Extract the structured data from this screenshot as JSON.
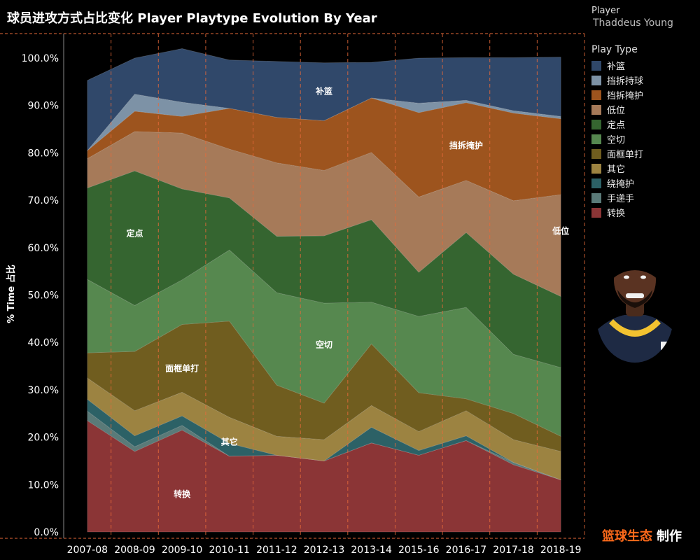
{
  "title": "球员进攻方式占比变化 Player Playtype Evolution By Year",
  "legend": {
    "player_label": "Player",
    "player_name": "Thaddeus Young",
    "playtype_label": "Play Type"
  },
  "credit": {
    "brand": "篮球生态",
    "suffix": "制作"
  },
  "chart_data": {
    "type": "area",
    "stacked": true,
    "ylabel": "% Time 占比",
    "ylim": [
      0,
      100
    ],
    "yticks": [
      "0.0%",
      "10.0%",
      "20.0%",
      "30.0%",
      "40.0%",
      "50.0%",
      "60.0%",
      "70.0%",
      "80.0%",
      "90.0%",
      "100.0%"
    ],
    "categories": [
      "2007-08",
      "2008-09",
      "2009-10",
      "2010-11",
      "2011-12",
      "2012-13",
      "2013-14",
      "2015-16",
      "2016-17",
      "2017-18",
      "2018-19"
    ],
    "grid": "vertical dashed",
    "series": [
      {
        "name": "转换",
        "color": "#8b3536",
        "values": [
          23.5,
          17.0,
          21.5,
          16.0,
          16.2,
          15.0,
          18.8,
          16.2,
          19.3,
          14.2,
          11.0
        ]
      },
      {
        "name": "手递手",
        "color": "#5a7a78",
        "values": [
          2.0,
          1.0,
          1.0,
          0.0,
          0.0,
          0.0,
          0.0,
          0.0,
          0.0,
          0.5,
          0.0
        ]
      },
      {
        "name": "绕掩护",
        "color": "#2c6166",
        "values": [
          2.5,
          2.3,
          2.0,
          2.7,
          0.0,
          0.0,
          3.3,
          1.0,
          1.0,
          0.0,
          0.0
        ]
      },
      {
        "name": "其它",
        "color": "#9c8341",
        "values": [
          4.5,
          5.3,
          5.0,
          5.5,
          4.0,
          4.5,
          4.6,
          4.0,
          5.3,
          4.8,
          6.0
        ]
      },
      {
        "name": "面框单打",
        "color": "#705d1f",
        "values": [
          5.3,
          12.5,
          14.3,
          20.3,
          10.8,
          7.7,
          13.0,
          8.2,
          2.5,
          5.5,
          3.2
        ]
      },
      {
        "name": "空切",
        "color": "#56884f",
        "values": [
          15.5,
          9.7,
          9.4,
          15.0,
          19.5,
          21.1,
          8.8,
          16.1,
          19.3,
          12.5,
          14.5
        ]
      },
      {
        "name": "定点",
        "color": "#356530",
        "values": [
          19.3,
          28.4,
          19.2,
          11.0,
          11.9,
          14.2,
          17.4,
          9.3,
          15.8,
          16.9,
          15.0
        ]
      },
      {
        "name": "其它",
        "color": "#9c8341",
        "values": [
          0,
          0,
          0,
          0,
          0,
          0,
          0,
          0,
          0,
          0,
          0
        ]
      },
      {
        "name": "低位",
        "color": "#a67a59",
        "values": [
          6.2,
          8.3,
          11.8,
          10.3,
          15.5,
          13.8,
          14.2,
          15.9,
          11.0,
          15.5,
          21.5
        ]
      },
      {
        "name": "挡拆掩护",
        "color": "#9d541e",
        "values": [
          1.7,
          4.3,
          3.5,
          8.6,
          9.6,
          10.5,
          11.5,
          17.8,
          16.4,
          18.5,
          16.0
        ]
      },
      {
        "name": "挡拆持球",
        "color": "#7d92a6",
        "values": [
          0.0,
          3.6,
          3.0,
          0.0,
          0.0,
          0.0,
          0.0,
          2.0,
          0.5,
          0.5,
          0.5
        ]
      },
      {
        "name": "补篮",
        "color": "#30486a",
        "values": [
          14.8,
          7.6,
          11.3,
          10.2,
          11.8,
          12.2,
          7.5,
          9.5,
          9.0,
          11.2,
          12.5
        ]
      }
    ],
    "legend_entries": [
      {
        "name": "补篮",
        "color": "#30486a"
      },
      {
        "name": "挡拆持球",
        "color": "#7d92a6"
      },
      {
        "name": "挡拆掩护",
        "color": "#9d541e"
      },
      {
        "name": "低位",
        "color": "#a67a59"
      },
      {
        "name": "定点",
        "color": "#356530"
      },
      {
        "name": "空切",
        "color": "#56884f"
      },
      {
        "name": "面框单打",
        "color": "#705d1f"
      },
      {
        "name": "其它",
        "color": "#9c8341"
      },
      {
        "name": "绕掩护",
        "color": "#2c6166"
      },
      {
        "name": "手递手",
        "color": "#5a7a78"
      },
      {
        "name": "转换",
        "color": "#8b3536"
      }
    ],
    "area_labels": [
      {
        "text": "补篮",
        "category": "2012-13",
        "value": 93
      },
      {
        "text": "挡拆掩护",
        "category": "2016-17",
        "value": 81.5
      },
      {
        "text": "低位",
        "category": "2018-19",
        "value": 63.5
      },
      {
        "text": "定点",
        "category": "2008-09",
        "value": 63
      },
      {
        "text": "空切",
        "category": "2012-13",
        "value": 39.5
      },
      {
        "text": "面框单打",
        "category": "2009-10",
        "value": 34.5
      },
      {
        "text": "其它",
        "category": "2010-11",
        "value": 19
      },
      {
        "text": "转换",
        "category": "2009-10",
        "value": 8
      }
    ]
  }
}
